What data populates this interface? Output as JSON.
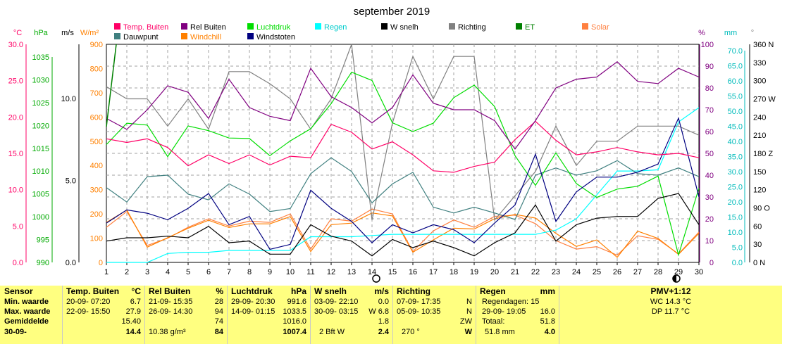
{
  "title": "september 2019",
  "axes": {
    "left_units": [
      "°C",
      "hPa",
      "m/s",
      "W/m²"
    ],
    "right_units": [
      "%",
      "mm",
      "°"
    ],
    "temp_ticks": [
      "30.0",
      "25.0",
      "20.0",
      "15.0",
      "10.0",
      "5.0",
      "0.0"
    ],
    "hpa_ticks": [
      "1035",
      "1030",
      "1025",
      "1020",
      "1015",
      "1010",
      "1005",
      "1000",
      "995",
      "990"
    ],
    "ms_ticks": [
      "10.0",
      "5.0",
      "0.0"
    ],
    "wm2_ticks": [
      "900",
      "800",
      "700",
      "600",
      "500",
      "400",
      "300",
      "200",
      "100",
      "0"
    ],
    "pct_ticks": [
      "100",
      "90",
      "80",
      "70",
      "60",
      "50",
      "40",
      "30",
      "20",
      "10",
      "0"
    ],
    "mm_ticks": [
      "70.0",
      "65.0",
      "60.0",
      "55.0",
      "50.0",
      "45.0",
      "40.0",
      "35.0",
      "30.0",
      "25.0",
      "20.0",
      "15.0",
      "10.0",
      "5.0",
      "0.0"
    ],
    "dir_ticks": [
      "360 N",
      "330",
      "300",
      "270 W",
      "240",
      "210",
      "180 Z",
      "150",
      "120",
      "90 O",
      "60",
      "30",
      "0 N"
    ],
    "days": [
      "1",
      "2",
      "3",
      "4",
      "5",
      "6",
      "7",
      "8",
      "9",
      "10",
      "11",
      "12",
      "13",
      "14",
      "15",
      "16",
      "17",
      "18",
      "19",
      "20",
      "21",
      "22",
      "23",
      "24",
      "25",
      "26",
      "27",
      "28",
      "29",
      "30"
    ]
  },
  "legend": [
    {
      "label": "Temp. Buiten",
      "color": "#ff0066"
    },
    {
      "label": "Rel Buiten",
      "color": "#800080"
    },
    {
      "label": "Luchtdruk",
      "color": "#00dd00"
    },
    {
      "label": "Regen",
      "color": "#00ffff"
    },
    {
      "label": "W snelh",
      "color": "#000000"
    },
    {
      "label": "Richting",
      "color": "#808080"
    },
    {
      "label": "ET",
      "color": "#008000"
    },
    {
      "label": "Solar",
      "color": "#ff8040"
    },
    {
      "label": "Dauwpunt",
      "color": "#408080"
    },
    {
      "label": "Windchill",
      "color": "#ff8000"
    },
    {
      "label": "Windstoten",
      "color": "#000080"
    }
  ],
  "chart_data": {
    "type": "line",
    "title": "september 2019",
    "x": [
      1,
      2,
      3,
      4,
      5,
      6,
      7,
      8,
      9,
      10,
      11,
      12,
      13,
      14,
      15,
      16,
      17,
      18,
      19,
      20,
      21,
      22,
      23,
      24,
      25,
      26,
      27,
      28,
      29,
      30
    ],
    "grid": true,
    "series": [
      {
        "name": "Temp. Buiten",
        "axis": "°C",
        "ylim": [
          0,
          30
        ],
        "color": "#ff0066",
        "values": [
          17.0,
          16.5,
          17.0,
          15.8,
          13.3,
          14.8,
          13.6,
          14.8,
          13.4,
          14.6,
          14.4,
          19.0,
          17.9,
          15.6,
          16.6,
          14.8,
          12.6,
          12.4,
          13.2,
          13.8,
          16.9,
          19.4,
          16.8,
          14.8,
          15.2,
          15.8,
          15.2,
          14.8,
          15.0,
          14.4
        ]
      },
      {
        "name": "Rel Buiten",
        "axis": "%",
        "ylim": [
          0,
          100
        ],
        "color": "#800080",
        "values": [
          66,
          61,
          70,
          81,
          78,
          66,
          84,
          71,
          67,
          65,
          89,
          76,
          71,
          64,
          71,
          86,
          73,
          70,
          70,
          65,
          52,
          65,
          80,
          84,
          85,
          92,
          83,
          82,
          89,
          85
        ]
      },
      {
        "name": "Luchtdruk",
        "axis": "hPa",
        "ylim": [
          990,
          1037
        ],
        "color": "#00dd00",
        "values": [
          1015.4,
          1020.0,
          1019.6,
          1012.8,
          1019.4,
          1018.4,
          1016.8,
          1016.7,
          1013.0,
          1016.2,
          1018.8,
          1024.2,
          1031.0,
          1029.2,
          1020.1,
          1018.2,
          1020.0,
          1025.5,
          1028.2,
          1023.6,
          1013.0,
          1006.6,
          1013.6,
          1007.0,
          1004.0,
          1005.8,
          1006.4,
          1008.6,
          991.6,
          1006.0
        ]
      },
      {
        "name": "Dauwpunt",
        "axis": "°C",
        "ylim": [
          0,
          30
        ],
        "color": "#408080",
        "values": [
          10.3,
          8.3,
          11.8,
          12.0,
          9.4,
          8.6,
          10.8,
          9.4,
          7.0,
          7.4,
          12.2,
          14.4,
          12.5,
          8.2,
          10.8,
          12.4,
          7.6,
          6.8,
          7.6,
          6.8,
          5.9,
          12.0,
          13.0,
          12.0,
          12.6,
          14.0,
          12.2,
          12.0,
          13.0,
          11.8
        ]
      },
      {
        "name": "Windchill",
        "axis": "°C",
        "ylim": [
          0,
          30
        ],
        "color": "#ff8000",
        "values": [
          5.5,
          7.2,
          2.1,
          3.4,
          4.7,
          5.8,
          4.8,
          5.3,
          5.3,
          6.3,
          1.5,
          5.2,
          5.4,
          6.8,
          6.4,
          1.4,
          3.1,
          4.7,
          4.6,
          6.0,
          6.6,
          6.1,
          4.0,
          2.2,
          3.1,
          0.7,
          4.3,
          3.3,
          1.1,
          4.0
        ]
      },
      {
        "name": "W snelh",
        "axis": "m/s",
        "ylim": [
          0,
          13.3
        ],
        "color": "#000000",
        "values": [
          1.3,
          1.5,
          1.5,
          1.6,
          1.5,
          2.2,
          1.2,
          1.3,
          0.5,
          0.5,
          2.3,
          1.6,
          1.3,
          0.4,
          1.4,
          0.9,
          1.3,
          0.9,
          0.4,
          1.2,
          1.8,
          3.5,
          1.3,
          2.3,
          2.7,
          2.8,
          2.8,
          3.9,
          4.2,
          2.3
        ]
      },
      {
        "name": "Windstoten",
        "axis": "m/s",
        "ylim": [
          0,
          13.3
        ],
        "color": "#000080",
        "values": [
          2.4,
          3.2,
          3.0,
          2.6,
          3.3,
          4.2,
          2.3,
          2.8,
          0.8,
          1.1,
          4.4,
          3.3,
          2.5,
          1.2,
          2.3,
          1.8,
          2.3,
          2.0,
          1.2,
          2.4,
          3.5,
          6.6,
          2.5,
          4.3,
          5.2,
          5.2,
          5.5,
          6.0,
          8.8,
          4.0
        ]
      },
      {
        "name": "Richting",
        "axis": "°",
        "ylim": [
          0,
          360
        ],
        "color": "#808080",
        "values": [
          290,
          270,
          270,
          225,
          270,
          220,
          315,
          315,
          295,
          270,
          220,
          270,
          360,
          70,
          230,
          340,
          270,
          340,
          340,
          70,
          110,
          150,
          225,
          160,
          200,
          200,
          225,
          225,
          225,
          210
        ]
      },
      {
        "name": "Regen",
        "axis": "mm",
        "ylim": [
          0,
          73
        ],
        "color": "#00ffff",
        "values": [
          0,
          0,
          0,
          3.0,
          3.4,
          3.4,
          4.0,
          4.0,
          4.0,
          4.0,
          8.6,
          8.6,
          8.6,
          9.0,
          9.4,
          9.4,
          9.4,
          9.4,
          9.4,
          9.4,
          9.4,
          9.4,
          10.8,
          14.6,
          22.6,
          30.6,
          30.6,
          31.0,
          47.0,
          51.8
        ]
      },
      {
        "name": "Solar",
        "axis": "W/m²",
        "ylim": [
          0,
          900
        ],
        "color": "#ff8040",
        "values": [
          145,
          210,
          70,
          100,
          145,
          180,
          150,
          170,
          165,
          200,
          55,
          180,
          170,
          220,
          200,
          45,
          130,
          175,
          145,
          190,
          195,
          160,
          90,
          55,
          65,
          30,
          110,
          95,
          35,
          125
        ]
      }
    ]
  },
  "table": {
    "headers": {
      "sensor": "Sensor",
      "temp": "Temp. Buiten",
      "temp_unit": "°C",
      "rel": "Rel Buiten",
      "rel_unit": "%",
      "press": "Luchtdruk",
      "press_unit": "hPa",
      "wind": "W snelh",
      "wind_unit": "m/s",
      "dir": "Richting",
      "rain": "Regen",
      "rain_unit": "mm",
      "pmv": "PMV+1:12"
    },
    "row_labels": [
      "Min. waarde",
      "Max. waarde",
      "Gemiddelde",
      "30-09-"
    ],
    "temp": [
      [
        "20-09-  07:20",
        "6.7"
      ],
      [
        "22-09-  15:50",
        "27.9"
      ],
      [
        "",
        "15.40"
      ],
      [
        "",
        "14.4"
      ]
    ],
    "rel": [
      [
        "21-09-  15:35",
        "28"
      ],
      [
        "26-09-  14:30",
        "94"
      ],
      [
        "",
        "74"
      ],
      [
        "10.38 g/m³",
        "84"
      ]
    ],
    "press": [
      [
        "29-09-  20:30",
        "991.6"
      ],
      [
        "14-09-  01:15",
        "1033.5"
      ],
      [
        "",
        "1016.0"
      ],
      [
        "",
        "1007.4"
      ]
    ],
    "wind": [
      [
        "03-09-  22:10",
        "0.0"
      ],
      [
        "30-09-  03:15",
        "W 6.8"
      ],
      [
        "",
        "1.8"
      ],
      [
        "2 Bft W",
        "2.4"
      ]
    ],
    "dir": [
      [
        "07-09-  17:35",
        "N"
      ],
      [
        "05-09-  10:35",
        "N"
      ],
      [
        "",
        "ZW"
      ],
      [
        "270 °",
        "W"
      ]
    ],
    "rain": [
      [
        "Regendagen: 15",
        ""
      ],
      [
        "29-09-  19:05",
        "16.0"
      ],
      [
        "Totaal:",
        "51.8"
      ],
      [
        "51.8 mm",
        "4.0"
      ]
    ],
    "pmv": [
      "WC 14.3 °C",
      "DP 11.7 °C"
    ]
  }
}
